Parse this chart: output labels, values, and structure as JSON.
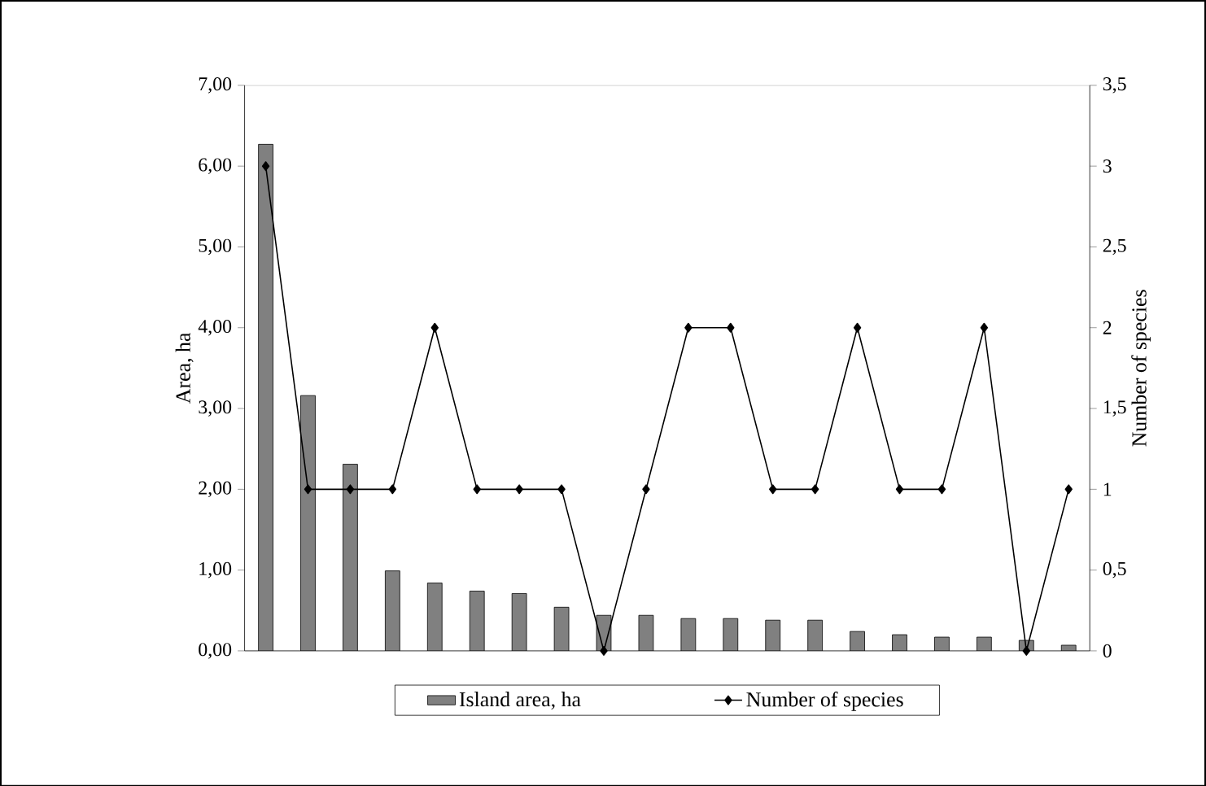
{
  "chart_data": {
    "type": "bar",
    "categories": [
      null,
      null,
      null,
      null,
      null,
      null,
      null,
      null,
      null,
      null,
      null,
      null,
      null,
      null,
      null,
      null,
      null,
      null,
      null,
      null
    ],
    "ylabel": "Area, ha",
    "y2label": "Number of species",
    "ylim": [
      0,
      7
    ],
    "yticks": [
      {
        "value": 0,
        "label": "0,00"
      },
      {
        "value": 1,
        "label": "1,00"
      },
      {
        "value": 2,
        "label": "2,00"
      },
      {
        "value": 3,
        "label": "3,00"
      },
      {
        "value": 4,
        "label": "4,00"
      },
      {
        "value": 5,
        "label": "5,00"
      },
      {
        "value": 6,
        "label": "6,00"
      },
      {
        "value": 7,
        "label": "7,00"
      }
    ],
    "y2lim": [
      0,
      3.5
    ],
    "y2ticks": [
      0,
      {
        "value": 0.5,
        "label": "0,5"
      },
      1,
      {
        "value": 1.5,
        "label": "1,5"
      },
      2,
      {
        "value": 2.5,
        "label": "2,5"
      },
      3,
      {
        "value": 3.5,
        "label": "3,5"
      }
    ],
    "legend": "bottom",
    "grid": false,
    "series": [
      {
        "name": "Island area, ha",
        "color": "#808080",
        "values": [
          6.27,
          3.16,
          2.31,
          0.99,
          0.84,
          0.74,
          0.71,
          0.54,
          0.44,
          0.44,
          0.4,
          0.4,
          0.38,
          0.38,
          0.24,
          0.2,
          0.17,
          0.17,
          0.13,
          0.07
        ]
      },
      {
        "name": "Number of species",
        "type": "line",
        "axis": "y2",
        "color": "#000000",
        "marker": "diamond",
        "line_style": "solid",
        "values": [
          3,
          1,
          1,
          1,
          2,
          1,
          1,
          1,
          0,
          1,
          2,
          2,
          1,
          1,
          2,
          1,
          1,
          2,
          0,
          1
        ]
      }
    ]
  }
}
